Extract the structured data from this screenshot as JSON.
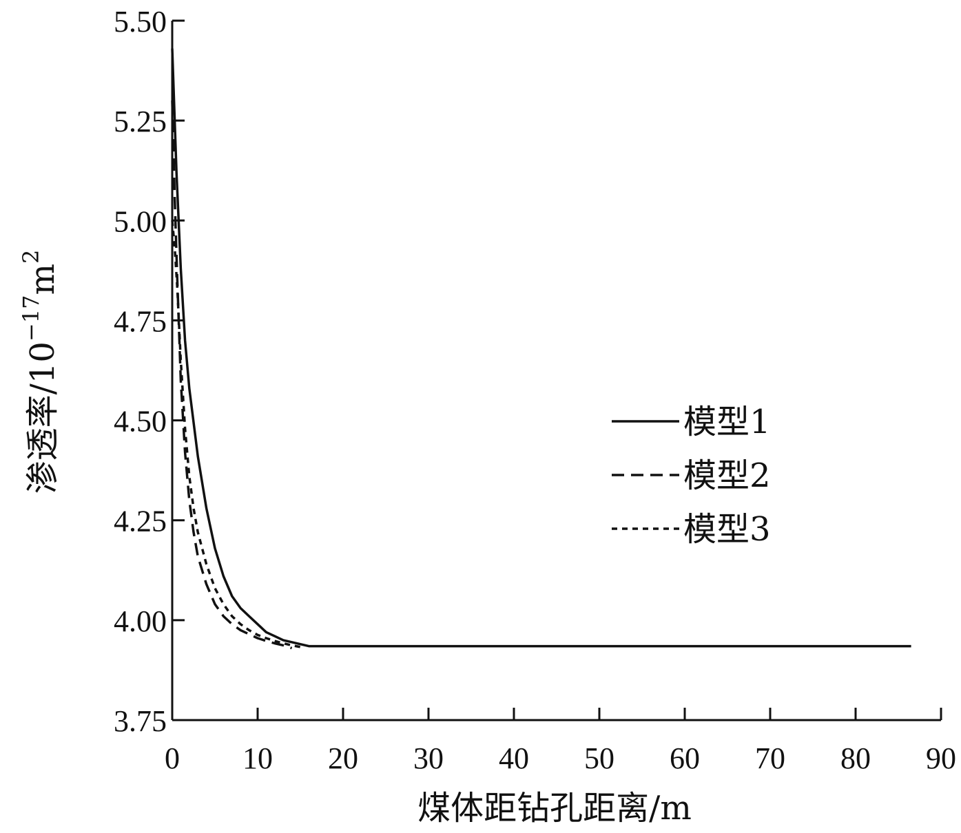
{
  "chart_data": {
    "type": "line",
    "title": "",
    "xlabel": "煤体距钻孔距离/m",
    "ylabel_main": "渗透率/10",
    "ylabel_exp": "−17",
    "ylabel_unit": "m",
    "ylabel_unit_exp": "2",
    "xlim": [
      0,
      90
    ],
    "ylim": [
      3.75,
      5.5
    ],
    "xticks": [
      0,
      10,
      20,
      30,
      40,
      50,
      60,
      70,
      80,
      90
    ],
    "yticks": [
      3.75,
      4.0,
      4.25,
      4.5,
      4.75,
      5.0,
      5.25,
      5.5
    ],
    "xtick_labels": [
      "0",
      "10",
      "20",
      "30",
      "40",
      "50",
      "60",
      "70",
      "80",
      "90"
    ],
    "ytick_labels": [
      "3.75",
      "4.00",
      "4.25",
      "4.50",
      "4.75",
      "5.00",
      "5.25",
      "5.50"
    ],
    "grid": false,
    "legend_position": "right-center",
    "series": [
      {
        "name": "模型1",
        "style": "solid",
        "x": [
          0,
          0.5,
          1,
          1.5,
          2,
          3,
          4,
          5,
          6,
          7,
          8,
          9,
          10,
          11,
          12,
          13,
          14,
          15,
          16,
          20,
          30,
          40,
          50,
          60,
          70,
          80,
          86.5
        ],
        "y": [
          5.43,
          5.12,
          4.88,
          4.7,
          4.58,
          4.41,
          4.28,
          4.18,
          4.11,
          4.06,
          4.03,
          4.01,
          3.99,
          3.97,
          3.96,
          3.95,
          3.945,
          3.94,
          3.935,
          3.935,
          3.935,
          3.935,
          3.935,
          3.935,
          3.935,
          3.935,
          3.935
        ]
      },
      {
        "name": "模型2",
        "style": "dashed",
        "x": [
          0,
          0.3,
          0.6,
          1,
          1.5,
          2,
          2.5,
          3,
          4,
          5,
          6,
          7,
          8,
          9,
          10,
          11,
          12,
          13,
          14
        ],
        "y": [
          5.3,
          5.05,
          4.85,
          4.6,
          4.42,
          4.3,
          4.22,
          4.16,
          4.09,
          4.04,
          4.01,
          3.99,
          3.975,
          3.965,
          3.955,
          3.948,
          3.942,
          3.937,
          3.93
        ]
      },
      {
        "name": "模型3",
        "style": "dotted",
        "x": [
          0,
          0.3,
          0.6,
          1,
          1.5,
          2,
          2.5,
          3,
          4,
          5,
          6,
          7,
          8,
          9,
          10,
          11,
          12,
          13,
          14,
          15
        ],
        "y": [
          5.0,
          4.93,
          4.83,
          4.65,
          4.48,
          4.36,
          4.28,
          4.22,
          4.14,
          4.08,
          4.04,
          4.01,
          3.99,
          3.975,
          3.963,
          3.955,
          3.948,
          3.942,
          3.937,
          3.933
        ]
      }
    ]
  }
}
